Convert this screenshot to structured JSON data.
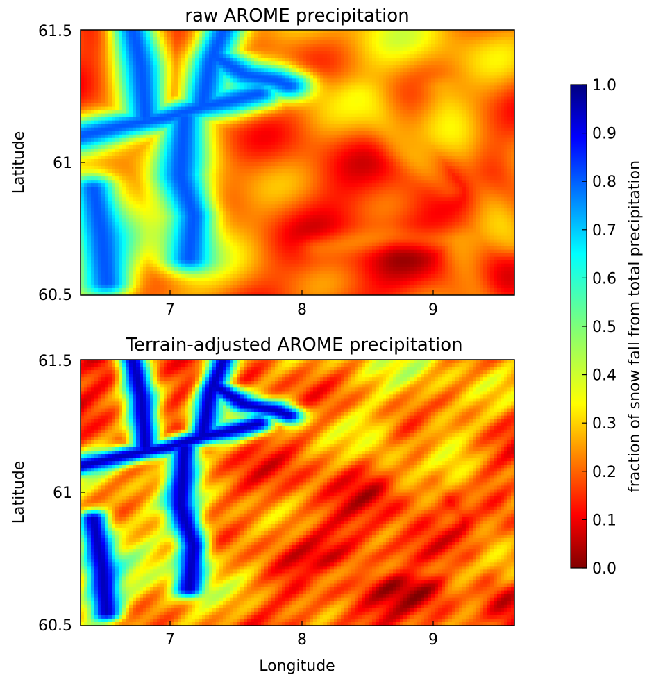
{
  "chart_data": [
    {
      "type": "heatmap",
      "title": "raw AROME precipitation",
      "xlabel": "",
      "ylabel": "Latitude",
      "xlim": [
        6.3,
        9.6
      ],
      "ylim": [
        60.5,
        61.5
      ],
      "xticks": [
        7,
        8,
        9
      ],
      "xtick_labels": [
        "7",
        "8",
        "9"
      ],
      "yticks": [
        60.5,
        61,
        61.5
      ],
      "ytick_labels": [
        "60.5",
        "61",
        "61.5"
      ],
      "colormap": "jet",
      "value_range": [
        0.0,
        1.0
      ],
      "valley_values": [
        0.12,
        0.3
      ],
      "grid": false
    },
    {
      "type": "heatmap",
      "title": "Terrain-adjusted AROME precipitation",
      "xlabel": "Longitude",
      "ylabel": "Latitude",
      "xlim": [
        6.3,
        9.6
      ],
      "ylim": [
        60.5,
        61.5
      ],
      "xticks": [
        7,
        8,
        9
      ],
      "xtick_labels": [
        "7",
        "8",
        "9"
      ],
      "yticks": [
        60.5,
        61,
        61.5
      ],
      "ytick_labels": [
        "60.5",
        "61",
        "61.5"
      ],
      "colormap": "jet",
      "value_range": [
        0.0,
        1.0
      ],
      "valley_values": [
        0.0,
        0.12
      ],
      "grid": false
    }
  ],
  "colorbar": {
    "label": "fraction of snow fall from total precipitation",
    "ticks": [
      0.0,
      0.1,
      0.2,
      0.3,
      0.4,
      0.5,
      0.6,
      0.7,
      0.8,
      0.9,
      1.0
    ],
    "tick_labels": [
      "0.0",
      "0.1",
      "0.2",
      "0.3",
      "0.4",
      "0.5",
      "0.6",
      "0.7",
      "0.8",
      "0.9",
      "1.0"
    ],
    "colormap": "jet"
  }
}
